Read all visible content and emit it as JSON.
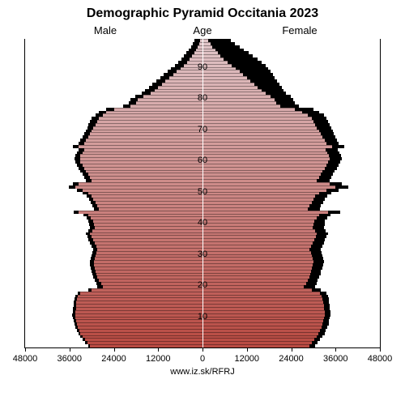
{
  "chart": {
    "type": "population-pyramid",
    "title": "Demographic Pyramid Occitania 2023",
    "title_fontsize": 16,
    "male_label": "Male",
    "female_label": "Female",
    "age_label": "Age",
    "source": "www.iz.sk/RFRJ",
    "background_color": "#ffffff",
    "x_axis": {
      "max": 48000,
      "ticks": [
        48000,
        36000,
        24000,
        12000,
        0
      ],
      "fontsize": 11
    },
    "y_axis": {
      "ticks": [
        10,
        20,
        30,
        40,
        50,
        60,
        70,
        80,
        90
      ],
      "fontsize": 11,
      "min_age": 0,
      "max_age": 98
    },
    "color_gradient": {
      "bottom": "#b84a42",
      "top": "#e0c5c8"
    },
    "shadow_color": "#000000",
    "male_values": [
      30500,
      31200,
      31800,
      32400,
      33000,
      33400,
      33800,
      34000,
      34200,
      34400,
      34500,
      34400,
      34300,
      34200,
      34100,
      34000,
      33800,
      33200,
      30000,
      27000,
      27500,
      28000,
      28500,
      28800,
      29000,
      29200,
      29300,
      29400,
      29200,
      29000,
      28800,
      28400,
      28800,
      29200,
      29600,
      30000,
      30400,
      29800,
      29200,
      29400,
      29600,
      30200,
      31000,
      33500,
      28000,
      28500,
      29000,
      29500,
      30000,
      31000,
      32500,
      34500,
      33500,
      30000,
      30500,
      31000,
      31500,
      32000,
      32500,
      33000,
      33200,
      33000,
      32500,
      32000,
      33500,
      32000,
      31500,
      31000,
      30500,
      30000,
      29500,
      29000,
      28500,
      28000,
      27000,
      26000,
      24000,
      19500,
      18000,
      17500,
      16000,
      14000,
      13000,
      12000,
      11000,
      10000,
      9000,
      8000,
      7000,
      6000,
      5000,
      4200,
      3500,
      2800,
      2200,
      1700,
      1300,
      900,
      600
    ],
    "female_values": [
      29000,
      29600,
      30200,
      30800,
      31400,
      31800,
      32200,
      32500,
      32700,
      32900,
      33000,
      33000,
      32900,
      32800,
      32700,
      32500,
      32300,
      31800,
      29500,
      27500,
      28000,
      28500,
      29000,
      29200,
      29400,
      29600,
      29800,
      30000,
      29800,
      29500,
      29300,
      29000,
      29400,
      29800,
      30200,
      30600,
      31000,
      30400,
      29800,
      30000,
      30200,
      30800,
      31500,
      34000,
      28500,
      29000,
      29500,
      30000,
      30500,
      31500,
      33500,
      36000,
      34500,
      31000,
      31500,
      32000,
      32500,
      33000,
      33500,
      34000,
      34500,
      34200,
      33800,
      33400,
      35000,
      33500,
      33000,
      32500,
      32000,
      31500,
      31000,
      30500,
      30000,
      29500,
      28500,
      27000,
      25000,
      21000,
      20000,
      19500,
      18500,
      17000,
      16000,
      15000,
      14000,
      13000,
      12000,
      11000,
      10000,
      9000,
      7800,
      6800,
      5800,
      4900,
      4100,
      3400,
      2700,
      2100,
      1500
    ],
    "male_shadow": [
      31000,
      31800,
      32400,
      33000,
      33600,
      34000,
      34400,
      34700,
      34900,
      35100,
      35200,
      35100,
      35000,
      34900,
      34800,
      34600,
      34400,
      33800,
      31000,
      28500,
      28800,
      29200,
      29600,
      29900,
      30100,
      30300,
      30400,
      30500,
      30300,
      30100,
      29900,
      29600,
      30000,
      30400,
      30800,
      31200,
      31600,
      31000,
      30400,
      30600,
      30800,
      31400,
      32200,
      34800,
      29400,
      29800,
      30200,
      30700,
      31300,
      32400,
      34000,
      36200,
      35000,
      31600,
      32000,
      32500,
      33000,
      33500,
      34000,
      34500,
      34700,
      34500,
      34000,
      33500,
      35000,
      33500,
      33000,
      32500,
      32000,
      31600,
      31200,
      30800,
      30400,
      30000,
      29000,
      28000,
      26000,
      21500,
      20000,
      19500,
      18200,
      16500,
      15500,
      14500,
      13500,
      12500,
      11500,
      10500,
      9500,
      8500,
      7500,
      6500,
      5700,
      5000,
      4300,
      3700,
      3100,
      2600,
      2100
    ],
    "female_shadow": [
      30500,
      31200,
      31800,
      32400,
      33000,
      33400,
      33800,
      34100,
      34300,
      34500,
      34600,
      34600,
      34500,
      34400,
      34300,
      34100,
      33900,
      33500,
      32000,
      30500,
      30800,
      31200,
      31600,
      31900,
      32100,
      32400,
      32600,
      32800,
      32600,
      32400,
      32200,
      32000,
      32400,
      32800,
      33200,
      33600,
      34000,
      33400,
      32800,
      33000,
      33200,
      33800,
      34600,
      37200,
      31700,
      32100,
      32600,
      33100,
      33700,
      34800,
      36800,
      39400,
      37800,
      34400,
      34800,
      35300,
      35800,
      36300,
      36800,
      37300,
      37800,
      37500,
      37100,
      36700,
      38300,
      36800,
      36400,
      36000,
      35600,
      35200,
      34800,
      34400,
      34000,
      33600,
      32800,
      31600,
      30000,
      26000,
      25000,
      24600,
      23800,
      22600,
      22000,
      21400,
      20800,
      20200,
      19600,
      19000,
      18400,
      17800,
      17000,
      16000,
      14800,
      13600,
      12400,
      11200,
      10000,
      8800,
      7600
    ]
  }
}
